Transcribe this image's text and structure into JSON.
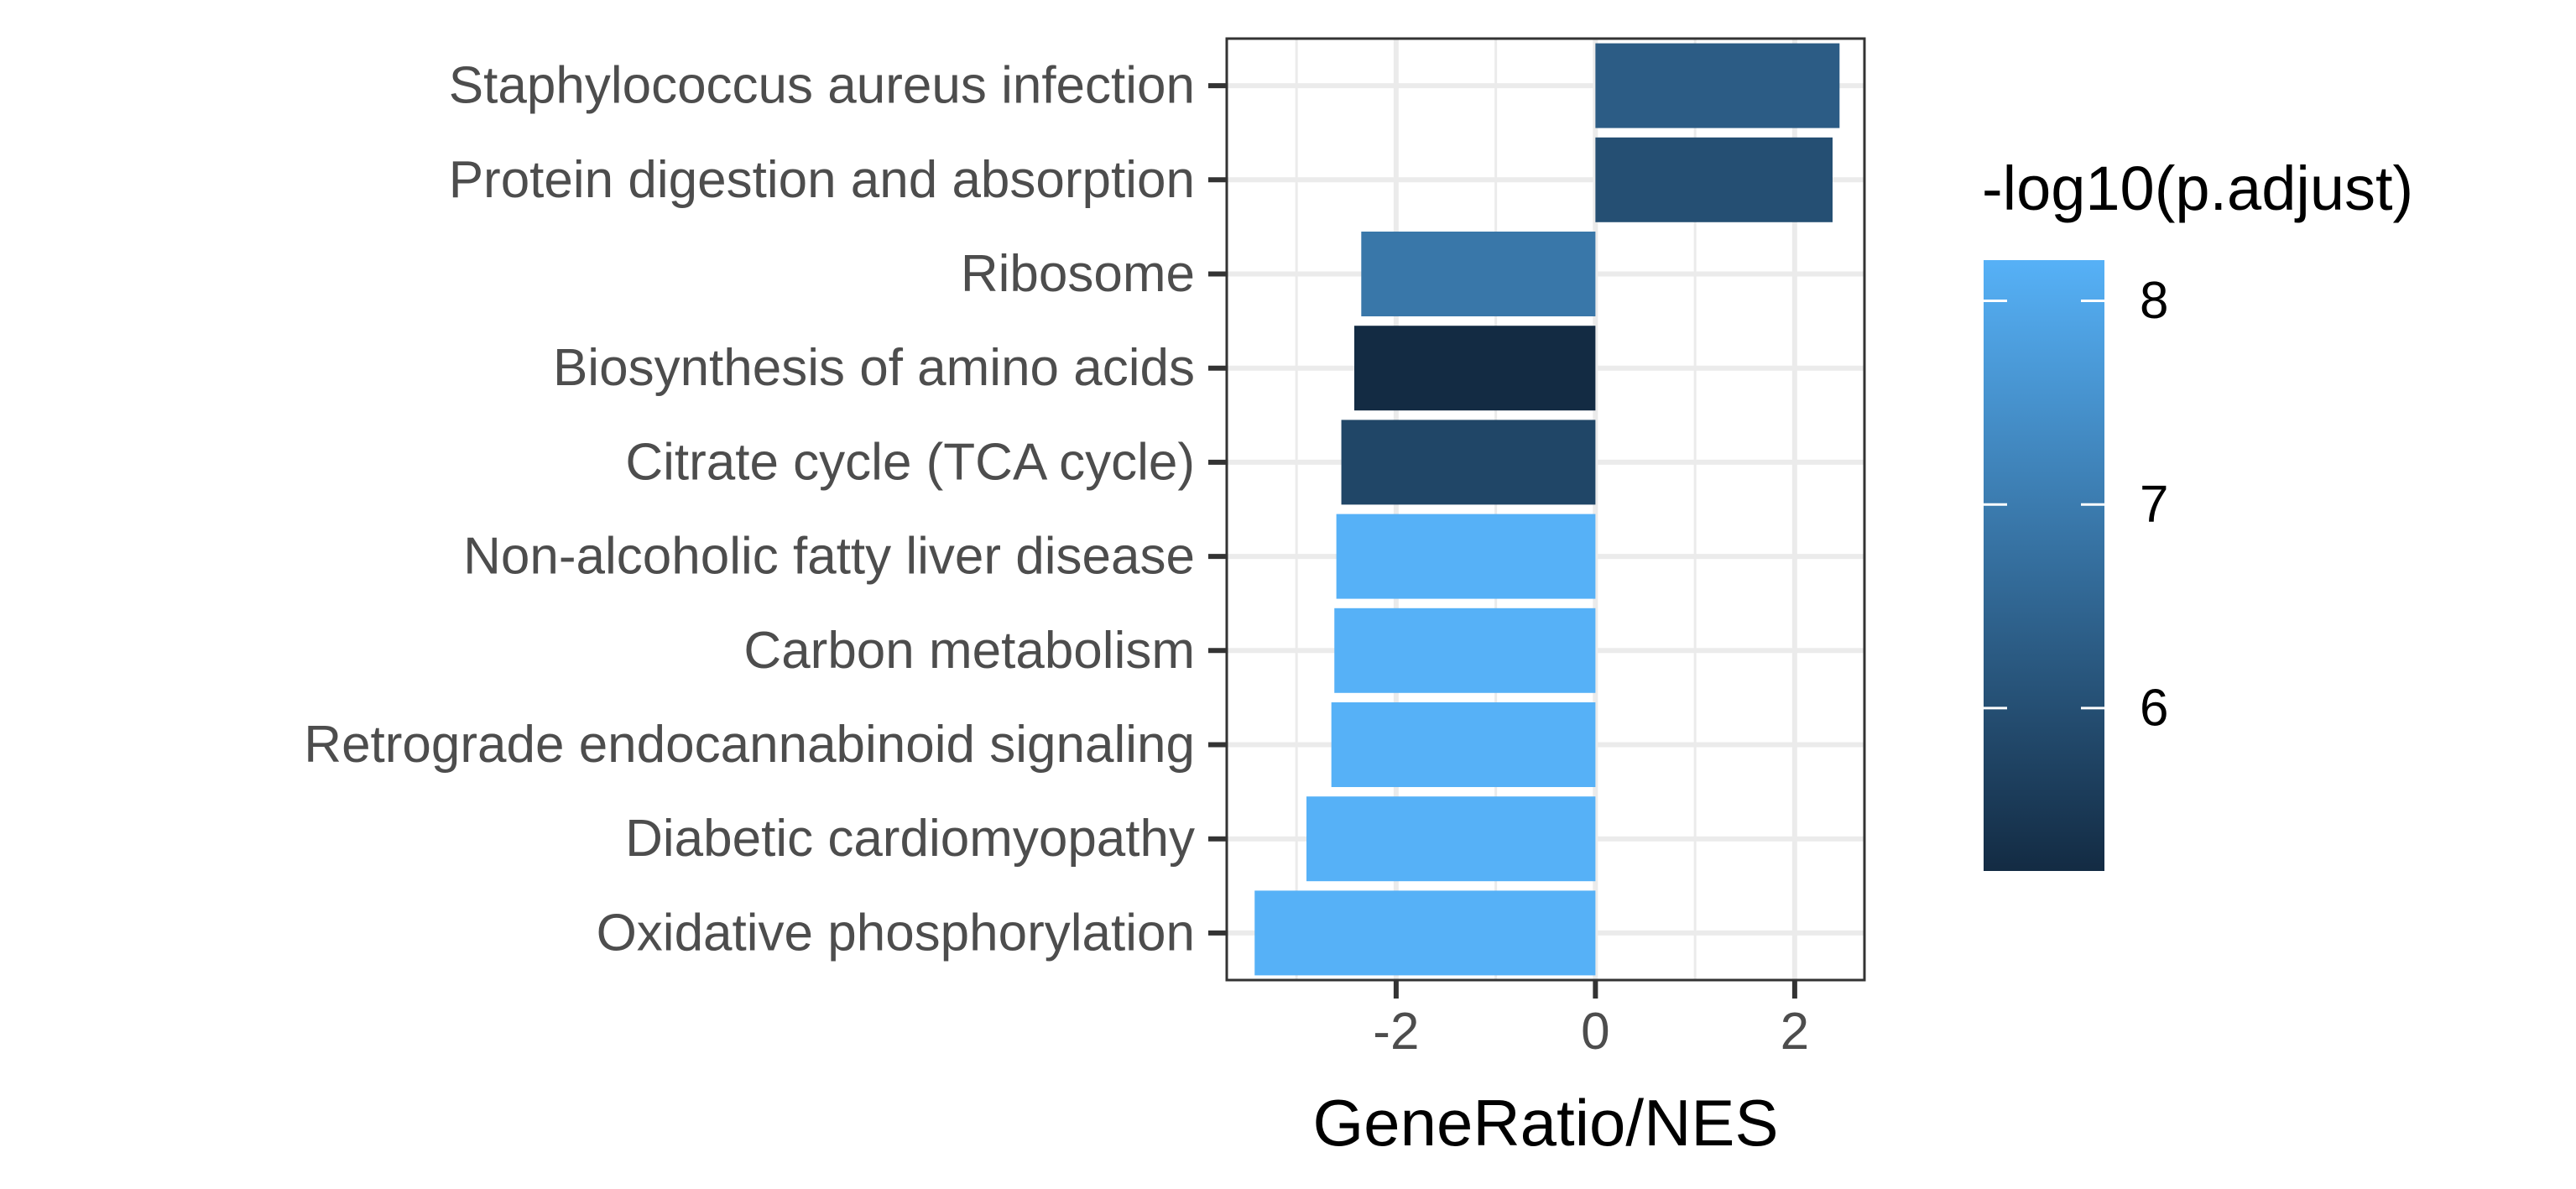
{
  "chart_data": {
    "type": "bar",
    "orientation": "horizontal",
    "title": "",
    "xlabel": "GeneRatio/NES",
    "ylabel": "",
    "xlim": [
      -3.7,
      2.7
    ],
    "xticks": [
      -2,
      0,
      2
    ],
    "grid": true,
    "categories": [
      "Staphylococcus aureus infection",
      "Protein digestion and absorption",
      "Ribosome",
      "Biosynthesis of amino acids",
      "Citrate cycle (TCA cycle)",
      "Non-alcoholic fatty liver disease",
      "Carbon metabolism",
      "Retrograde endocannabinoid signaling",
      "Diabetic cardiomyopathy",
      "Oxidative phosphorylation"
    ],
    "values": [
      2.45,
      2.38,
      -2.35,
      -2.42,
      -2.55,
      -2.6,
      -2.62,
      -2.65,
      -2.9,
      -3.42
    ],
    "color_values": [
      6.3,
      6.0,
      6.9,
      5.2,
      5.8,
      8.2,
      8.2,
      8.2,
      8.2,
      8.2
    ],
    "legend": {
      "title": "-log10(p.adjust)",
      "ticks": [
        6,
        7,
        8
      ],
      "range": [
        5.2,
        8.2
      ],
      "position": "right",
      "color_low": "#132B43",
      "color_high": "#56B1F7"
    }
  }
}
